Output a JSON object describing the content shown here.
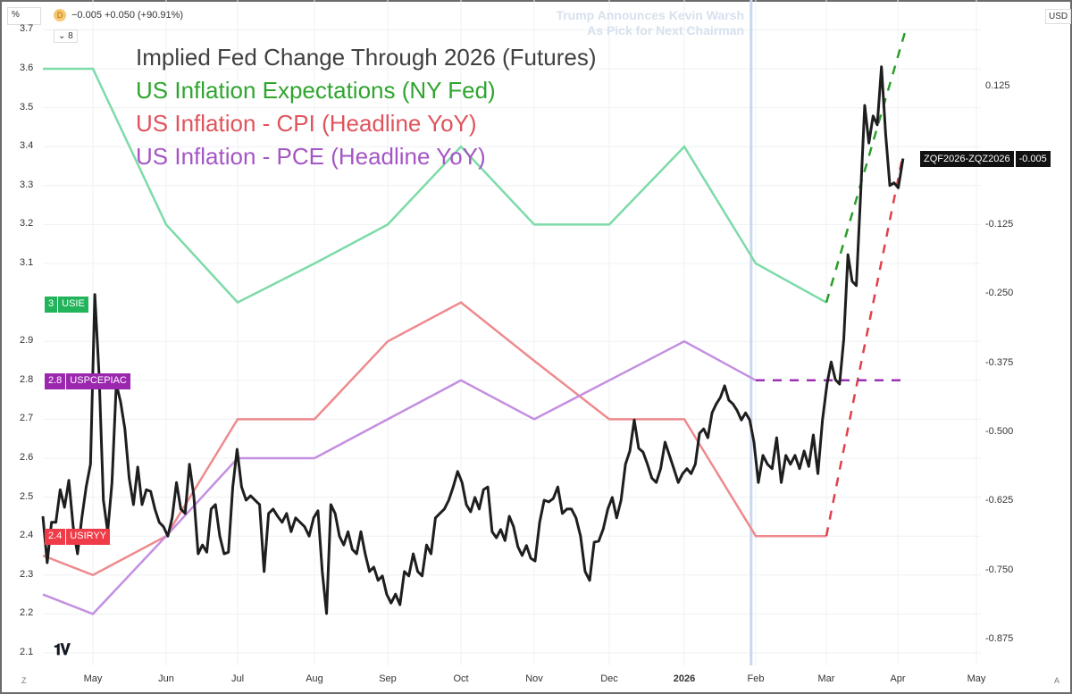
{
  "header": {
    "unit_label": "%",
    "currency_label": "USD",
    "interval_badge": "D",
    "ohlc_text": "−0.005 +0.050 (+90.91%)",
    "collapse_label": "8",
    "collapse_icon": "chevron-down-icon",
    "bottom_left_label": "Z",
    "bottom_right_label": "A",
    "logo_text": "TV"
  },
  "legend": [
    {
      "text": "Implied Fed Change Through 2026 (Futures)",
      "color": "#404040"
    },
    {
      "text": "US Inflation Expectations (NY Fed)",
      "color": "#2fa52f"
    },
    {
      "text": "US Inflation - CPI (Headline YoY)",
      "color": "#e0535c"
    },
    {
      "text": "US Inflation - PCE (Headline YoY)",
      "color": "#a456c4"
    }
  ],
  "annotation": {
    "line1": "Trump Announces Kevin Warsh",
    "line2": "As Pick for Next Chairman",
    "date": "2026-01-30"
  },
  "price_tags": [
    {
      "value": "3",
      "symbol": "USIE",
      "color": "#22b45a"
    },
    {
      "value": "2.8",
      "symbol": "USPCEPIAC",
      "color": "#9b27af"
    },
    {
      "value": "2.4",
      "symbol": "USIRYY",
      "color": "#f03c48"
    }
  ],
  "right_label": {
    "symbol": "ZQF2026-ZQZ2026",
    "value": "-0.005"
  },
  "chart_data": {
    "type": "line",
    "x_ticks": [
      {
        "label": "May",
        "date": "2025-05-01"
      },
      {
        "label": "Jun",
        "date": "2025-06-01"
      },
      {
        "label": "Jul",
        "date": "2025-07-01"
      },
      {
        "label": "Aug",
        "date": "2025-08-01"
      },
      {
        "label": "Sep",
        "date": "2025-09-01"
      },
      {
        "label": "Oct",
        "date": "2025-10-01"
      },
      {
        "label": "Nov",
        "date": "2025-11-01"
      },
      {
        "label": "Dec",
        "date": "2025-12-01"
      },
      {
        "label": "2026",
        "date": "2026-01-01",
        "bold": true
      },
      {
        "label": "Feb",
        "date": "2026-02-01"
      },
      {
        "label": "Mar",
        "date": "2026-03-01"
      },
      {
        "label": "Apr",
        "date": "2026-04-01"
      },
      {
        "label": "May",
        "date": "2026-05-01"
      }
    ],
    "left_axis": {
      "ticks": [
        "3.7",
        "3.6",
        "3.5",
        "3.4",
        "3.3",
        "3.2",
        "3.1",
        "2.9",
        "2.8",
        "2.7",
        "2.6",
        "2.5",
        "2.4",
        "2.3",
        "2.2",
        "2.1"
      ],
      "range": [
        2.05,
        3.75
      ]
    },
    "right_axis": {
      "ticks": [
        "0.125",
        "-0.125",
        "-0.250",
        "-0.375",
        "-0.500",
        "-0.625",
        "-0.750",
        "-0.875"
      ],
      "range": [
        -0.93,
        0.22
      ]
    },
    "grid": true,
    "series": [
      {
        "name": "Implied Fed Change Through 2026 (Futures)",
        "axis": "right",
        "color": "#1e1e1e",
        "start": "2025-04-10",
        "end": "2026-04-03",
        "values": [
          -0.652,
          -0.736,
          -0.663,
          -0.663,
          -0.604,
          -0.636,
          -0.587,
          -0.671,
          -0.72,
          -0.655,
          -0.599,
          -0.558,
          -0.251,
          -0.397,
          -0.623,
          -0.68,
          -0.591,
          -0.413,
          -0.445,
          -0.494,
          -0.583,
          -0.631,
          -0.563,
          -0.631,
          -0.604,
          -0.607,
          -0.639,
          -0.663,
          -0.671,
          -0.688,
          -0.655,
          -0.591,
          -0.639,
          -0.647,
          -0.558,
          -0.615,
          -0.72,
          -0.704,
          -0.717,
          -0.639,
          -0.631,
          -0.688,
          -0.72,
          -0.717,
          -0.599,
          -0.531,
          -0.599,
          -0.623,
          -0.615,
          -0.623,
          -0.631,
          -0.752,
          -0.647,
          -0.639,
          -0.652,
          -0.663,
          -0.647,
          -0.68,
          -0.655,
          -0.663,
          -0.671,
          -0.688,
          -0.655,
          -0.642,
          -0.752,
          -0.828,
          -0.631,
          -0.647,
          -0.688,
          -0.704,
          -0.68,
          -0.712,
          -0.72,
          -0.68,
          -0.72,
          -0.752,
          -0.744,
          -0.768,
          -0.76,
          -0.793,
          -0.809,
          -0.793,
          -0.812,
          -0.752,
          -0.76,
          -0.72,
          -0.752,
          -0.76,
          -0.704,
          -0.72,
          -0.655,
          -0.647,
          -0.639,
          -0.623,
          -0.599,
          -0.571,
          -0.591,
          -0.631,
          -0.644,
          -0.618,
          -0.639,
          -0.604,
          -0.599,
          -0.68,
          -0.691,
          -0.676,
          -0.696,
          -0.652,
          -0.671,
          -0.707,
          -0.723,
          -0.705,
          -0.728,
          -0.733,
          -0.663,
          -0.623,
          -0.626,
          -0.62,
          -0.599,
          -0.647,
          -0.639,
          -0.639,
          -0.655,
          -0.688,
          -0.752,
          -0.768,
          -0.699,
          -0.697,
          -0.675,
          -0.639,
          -0.618,
          -0.655,
          -0.623,
          -0.558,
          -0.534,
          -0.478,
          -0.529,
          -0.536,
          -0.558,
          -0.583,
          -0.591,
          -0.566,
          -0.518,
          -0.542,
          -0.566,
          -0.591,
          -0.575,
          -0.566,
          -0.575,
          -0.558,
          -0.502,
          -0.494,
          -0.51,
          -0.465,
          -0.449,
          -0.437,
          -0.416,
          -0.442,
          -0.449,
          -0.461,
          -0.478,
          -0.465,
          -0.478,
          -0.518,
          -0.591,
          -0.542,
          -0.558,
          -0.566,
          -0.51,
          -0.591,
          -0.542,
          -0.558,
          -0.542,
          -0.566,
          -0.534,
          -0.562,
          -0.505,
          -0.575,
          -0.478,
          -0.413,
          -0.373,
          -0.405,
          -0.413,
          -0.332,
          -0.179,
          -0.227,
          -0.235,
          -0.074,
          0.091,
          0.023,
          0.072,
          0.056,
          0.161,
          0.039,
          -0.054,
          -0.049,
          -0.058,
          -0.005
        ]
      },
      {
        "name": "US Inflation Expectations (NY Fed)",
        "axis": "left",
        "color": "#7ddba8",
        "points": [
          [
            "2025-04-10",
            3.6
          ],
          [
            "2025-05-01",
            3.6
          ],
          [
            "2025-06-01",
            3.2
          ],
          [
            "2025-07-01",
            3.0
          ],
          [
            "2025-08-01",
            3.1
          ],
          [
            "2025-09-01",
            3.2
          ],
          [
            "2025-10-01",
            3.4
          ],
          [
            "2025-11-01",
            3.2
          ],
          [
            "2025-12-01",
            3.2
          ],
          [
            "2026-01-01",
            3.4
          ],
          [
            "2026-02-01",
            3.1
          ],
          [
            "2026-03-01",
            3.0
          ]
        ],
        "projection": {
          "color": "#2a9d2a",
          "points": [
            [
              "2026-03-01",
              3.0
            ],
            [
              "2026-04-04",
              3.7
            ]
          ]
        }
      },
      {
        "name": "US Inflation - CPI (Headline YoY)",
        "axis": "left",
        "color": "#ee8a8e",
        "points": [
          [
            "2025-04-10",
            2.35
          ],
          [
            "2025-05-01",
            2.3
          ],
          [
            "2025-06-01",
            2.4
          ],
          [
            "2025-07-01",
            2.7
          ],
          [
            "2025-08-01",
            2.7
          ],
          [
            "2025-09-01",
            2.9
          ],
          [
            "2025-10-01",
            3.0
          ],
          [
            "2025-11-01",
            2.85
          ],
          [
            "2025-12-01",
            2.7
          ],
          [
            "2026-01-01",
            2.7
          ],
          [
            "2026-02-01",
            2.4
          ],
          [
            "2026-03-01",
            2.4
          ]
        ],
        "projection": {
          "color": "#e0404c",
          "points": [
            [
              "2026-03-01",
              2.4
            ],
            [
              "2026-04-03",
              3.38
            ]
          ]
        }
      },
      {
        "name": "US Inflation - PCE (Headline YoY)",
        "axis": "left",
        "color": "#c48fe0",
        "points": [
          [
            "2025-04-10",
            2.25
          ],
          [
            "2025-05-01",
            2.2
          ],
          [
            "2025-06-01",
            2.4
          ],
          [
            "2025-07-01",
            2.6
          ],
          [
            "2025-08-01",
            2.6
          ],
          [
            "2025-09-01",
            2.7
          ],
          [
            "2025-10-01",
            2.8
          ],
          [
            "2025-11-01",
            2.7
          ],
          [
            "2025-12-01",
            2.8
          ],
          [
            "2026-01-01",
            2.9
          ],
          [
            "2026-02-01",
            2.8
          ]
        ],
        "projection": {
          "color": "#9b30b5",
          "points": [
            [
              "2026-02-01",
              2.8
            ],
            [
              "2026-04-03",
              2.8
            ]
          ]
        }
      }
    ]
  }
}
